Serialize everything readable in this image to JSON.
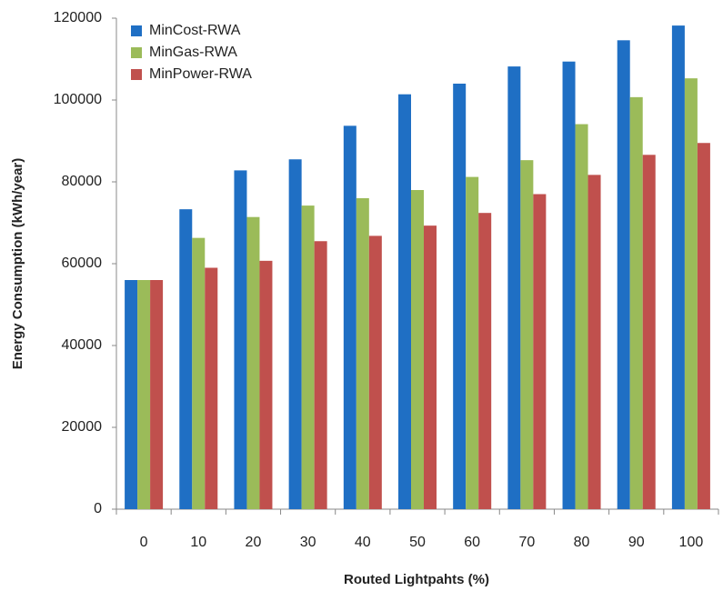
{
  "chart_data": {
    "type": "bar",
    "x_label": "Routed Lightpahts (%)",
    "y_label": "Energy Consumption (kWh/year)",
    "categories": [
      "0",
      "10",
      "20",
      "30",
      "40",
      "50",
      "60",
      "70",
      "80",
      "90",
      "100"
    ],
    "series": [
      {
        "name": "MinCost-RWA",
        "color": "#1f6fc4",
        "values": [
          56000,
          73300,
          82800,
          85500,
          93700,
          101400,
          104000,
          108200,
          109400,
          114600,
          118200
        ]
      },
      {
        "name": "MinGas-RWA",
        "color": "#9bbb59",
        "values": [
          56000,
          66300,
          71400,
          74200,
          76000,
          78000,
          81200,
          85300,
          94100,
          100700,
          105300
        ]
      },
      {
        "name": "MinPower-RWA",
        "color": "#c0504d",
        "values": [
          56000,
          59000,
          60700,
          65500,
          66800,
          69300,
          72400,
          77000,
          81700,
          86600,
          89500
        ]
      }
    ],
    "ylim": [
      0,
      120000
    ],
    "yticks": [
      0,
      20000,
      40000,
      60000,
      80000,
      100000,
      120000
    ],
    "grid": false,
    "legend": "upper left"
  }
}
